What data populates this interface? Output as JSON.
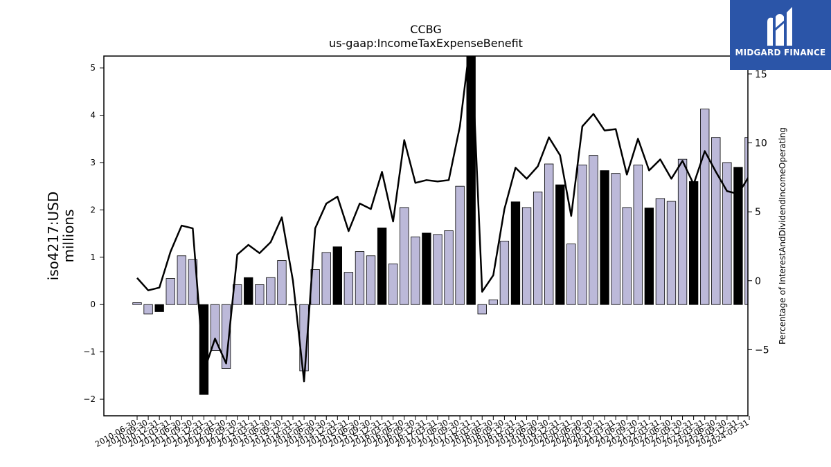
{
  "logo": {
    "text": "MIDGARD FINANCE",
    "background": "#2b55a8"
  },
  "chart_data": {
    "type": "bar",
    "title": "CCBG",
    "subtitle": "us-gaap:IncomeTaxExpenseBenefit",
    "ylabel": "iso4217:USD\nmillions",
    "y2label": "Percentage of InterestAndDividendIncomeOperating",
    "ylim": [
      -2.35,
      5.25
    ],
    "y2lim": [
      -9.8,
      16.3
    ],
    "yticks": [
      -2,
      -1,
      0,
      1,
      2,
      3,
      4,
      5
    ],
    "y2ticks": [
      -5,
      0,
      5,
      10,
      15
    ],
    "bar_color_default": "#bcb9d9",
    "bar_color_highlight": "#000000",
    "line_color": "#000000",
    "categories": [
      "2010-06-30",
      "2010-09-30",
      "2010-12-31",
      "2011-03-31",
      "2011-06-30",
      "2011-09-30",
      "2011-12-31",
      "2012-03-31",
      "2012-06-30",
      "2012-09-30",
      "2012-12-31",
      "2013-03-31",
      "2013-06-30",
      "2013-09-30",
      "2013-12-31",
      "2014-03-31",
      "2014-06-30",
      "2014-09-30",
      "2014-12-31",
      "2015-03-31",
      "2015-06-30",
      "2015-09-30",
      "2015-12-31",
      "2016-03-31",
      "2016-06-30",
      "2016-09-30",
      "2016-12-31",
      "2017-03-31",
      "2017-06-30",
      "2017-09-30",
      "2017-12-31",
      "2018-03-31",
      "2018-06-30",
      "2018-09-30",
      "2018-12-31",
      "2019-03-31",
      "2019-06-30",
      "2019-09-30",
      "2019-12-31",
      "2020-03-31",
      "2020-06-30",
      "2020-09-30",
      "2020-12-31",
      "2021-03-31",
      "2021-06-30",
      "2021-09-30",
      "2021-12-31",
      "2022-03-31",
      "2022-06-30",
      "2022-09-30",
      "2022-12-31",
      "2023-03-31",
      "2023-06-30",
      "2023-09-30",
      "2023-12-31",
      "2024-03-31"
    ],
    "x_tick_labels": [
      "2010-06-30",
      "2010-09-30",
      "2010-12-31",
      "2011-03-31",
      "2011-06-30",
      "2011-09-30",
      "2011-12-31",
      "2012-03-31",
      "2012-06-30",
      "2012-09-30",
      "2012-12-31",
      "2013-03-31",
      "2013-06-30",
      "2013-09-30",
      "2013-12-31",
      "2014-03-31",
      "2014-06-30",
      "2014-09-30",
      "2014-12-31",
      "2015-03-31",
      "2015-06-30",
      "2015-09-30",
      "2015-12-31",
      "2016-03-31",
      "2016-06-30",
      "2016-09-30",
      "2016-12-31",
      "2017-03-31",
      "2017-06-30",
      "2017-09-30",
      "2017-12-31",
      "2018-03-31",
      "2018-06-30",
      "2018-09-30",
      "2018-12-31",
      "2019-03-31",
      "2019-06-30",
      "2019-09-30",
      "2019-12-31",
      "2020-03-31",
      "2020-06-30",
      "2020-09-30",
      "2020-12-31",
      "2021-03-31",
      "2021-06-30",
      "2021-09-30",
      "2021-12-31",
      "2022-03-31",
      "2022-06-30",
      "2022-09-30",
      "2022-12-31",
      "2023-03-31",
      "2023-06-30",
      "2023-09-30",
      "2023-12-31",
      "2024-03-31"
    ],
    "series": [
      {
        "type": "bar",
        "values": [
          0.04,
          -0.2,
          -0.15,
          0.55,
          1.03,
          0.95,
          -1.9,
          -0.97,
          -1.35,
          0.42,
          0.57,
          0.42,
          0.57,
          0.93,
          0.0,
          -1.4,
          0.74,
          1.1,
          1.22,
          0.68,
          1.12,
          1.03,
          1.62,
          0.86,
          2.05,
          1.43,
          1.51,
          1.48,
          1.56,
          2.5,
          5.3,
          -0.2,
          0.1,
          1.34,
          2.17,
          2.05,
          2.38,
          2.97,
          2.53,
          1.28,
          2.95,
          3.15,
          2.83,
          2.77,
          2.05,
          2.95,
          2.04,
          2.24,
          2.18,
          3.07,
          2.6,
          4.13,
          3.53,
          3.0,
          2.9,
          3.53
        ],
        "highlight": [
          false,
          false,
          true,
          false,
          false,
          false,
          true,
          false,
          false,
          false,
          true,
          false,
          false,
          false,
          false,
          false,
          false,
          false,
          true,
          false,
          false,
          false,
          true,
          false,
          false,
          false,
          true,
          false,
          false,
          false,
          true,
          false,
          false,
          false,
          true,
          false,
          false,
          false,
          true,
          false,
          false,
          false,
          true,
          false,
          false,
          false,
          true,
          false,
          false,
          false,
          true,
          false,
          false,
          false,
          true,
          false
        ]
      },
      {
        "type": "line",
        "axis": "right",
        "values": [
          0.2,
          -0.7,
          -0.5,
          2.1,
          4.0,
          3.8,
          -6.6,
          -4.2,
          -6.0,
          1.9,
          2.6,
          2.0,
          2.8,
          4.6,
          0.0,
          -7.3,
          3.8,
          5.6,
          6.1,
          3.6,
          5.6,
          5.2,
          7.9,
          4.3,
          10.2,
          7.1,
          7.3,
          7.2,
          7.3,
          11.2,
          17.8,
          -0.8,
          0.4,
          5.2,
          8.2,
          7.4,
          8.3,
          10.4,
          9.1,
          4.7,
          11.2,
          12.1,
          10.9,
          11.0,
          7.7,
          10.3,
          8.0,
          8.8,
          7.4,
          8.7,
          7.0,
          9.4,
          7.9,
          6.5,
          6.3,
          7.6
        ]
      }
    ]
  }
}
